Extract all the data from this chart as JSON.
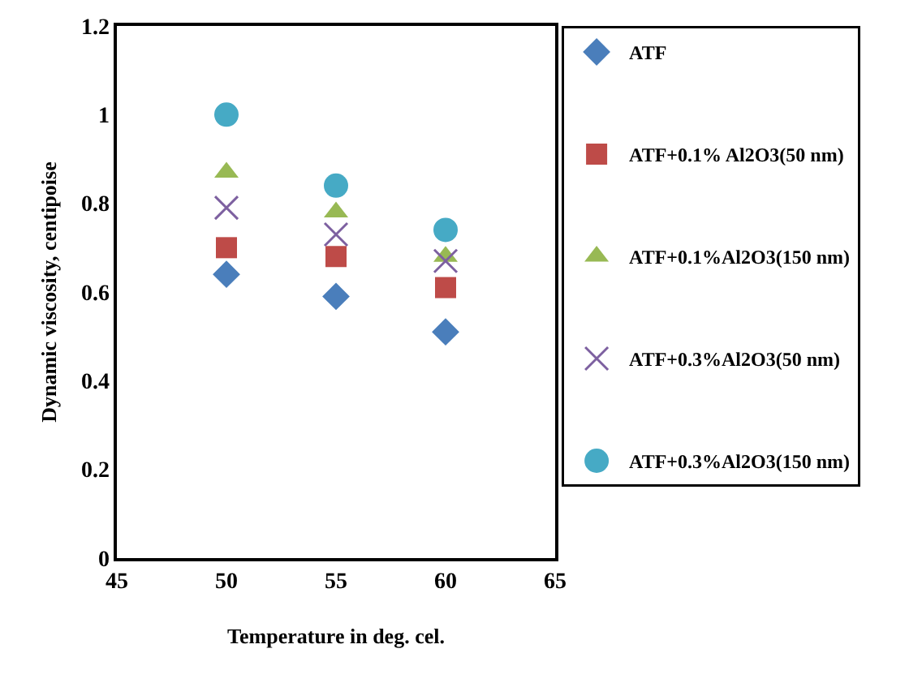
{
  "chart_data": {
    "type": "scatter",
    "xlabel": "Temperature in deg. cel.",
    "ylabel": "Dynamic viscosity, centipoise",
    "x": [
      50,
      55,
      60
    ],
    "series": [
      {
        "name": "ATF",
        "color": "#4a7ebb",
        "marker": "diamond",
        "values": [
          0.64,
          0.59,
          0.51
        ]
      },
      {
        "name": "ATF+0.1% Al2O3(50 nm)",
        "color": "#be4b48",
        "marker": "square",
        "values": [
          0.7,
          0.68,
          0.61
        ]
      },
      {
        "name": "ATF+0.1%Al2O3(150 nm)",
        "color": "#98b954",
        "marker": "triangle",
        "values": [
          0.87,
          0.78,
          0.68
        ]
      },
      {
        "name": "ATF+0.3%Al2O3(50 nm)",
        "color": "#7d60a0",
        "marker": "cross",
        "values": [
          0.79,
          0.73,
          0.67
        ]
      },
      {
        "name": "ATF+0.3%Al2O3(150 nm)",
        "color": "#46aac5",
        "marker": "circle",
        "values": [
          1.0,
          0.84,
          0.74
        ]
      }
    ],
    "xlim": [
      45,
      65
    ],
    "xticks": [
      45,
      50,
      55,
      60,
      65
    ],
    "ylim": [
      0,
      1.2
    ],
    "yticks": [
      0,
      0.2,
      0.4,
      0.6,
      0.8,
      1,
      1.2
    ],
    "grid": false,
    "legend": "right"
  }
}
